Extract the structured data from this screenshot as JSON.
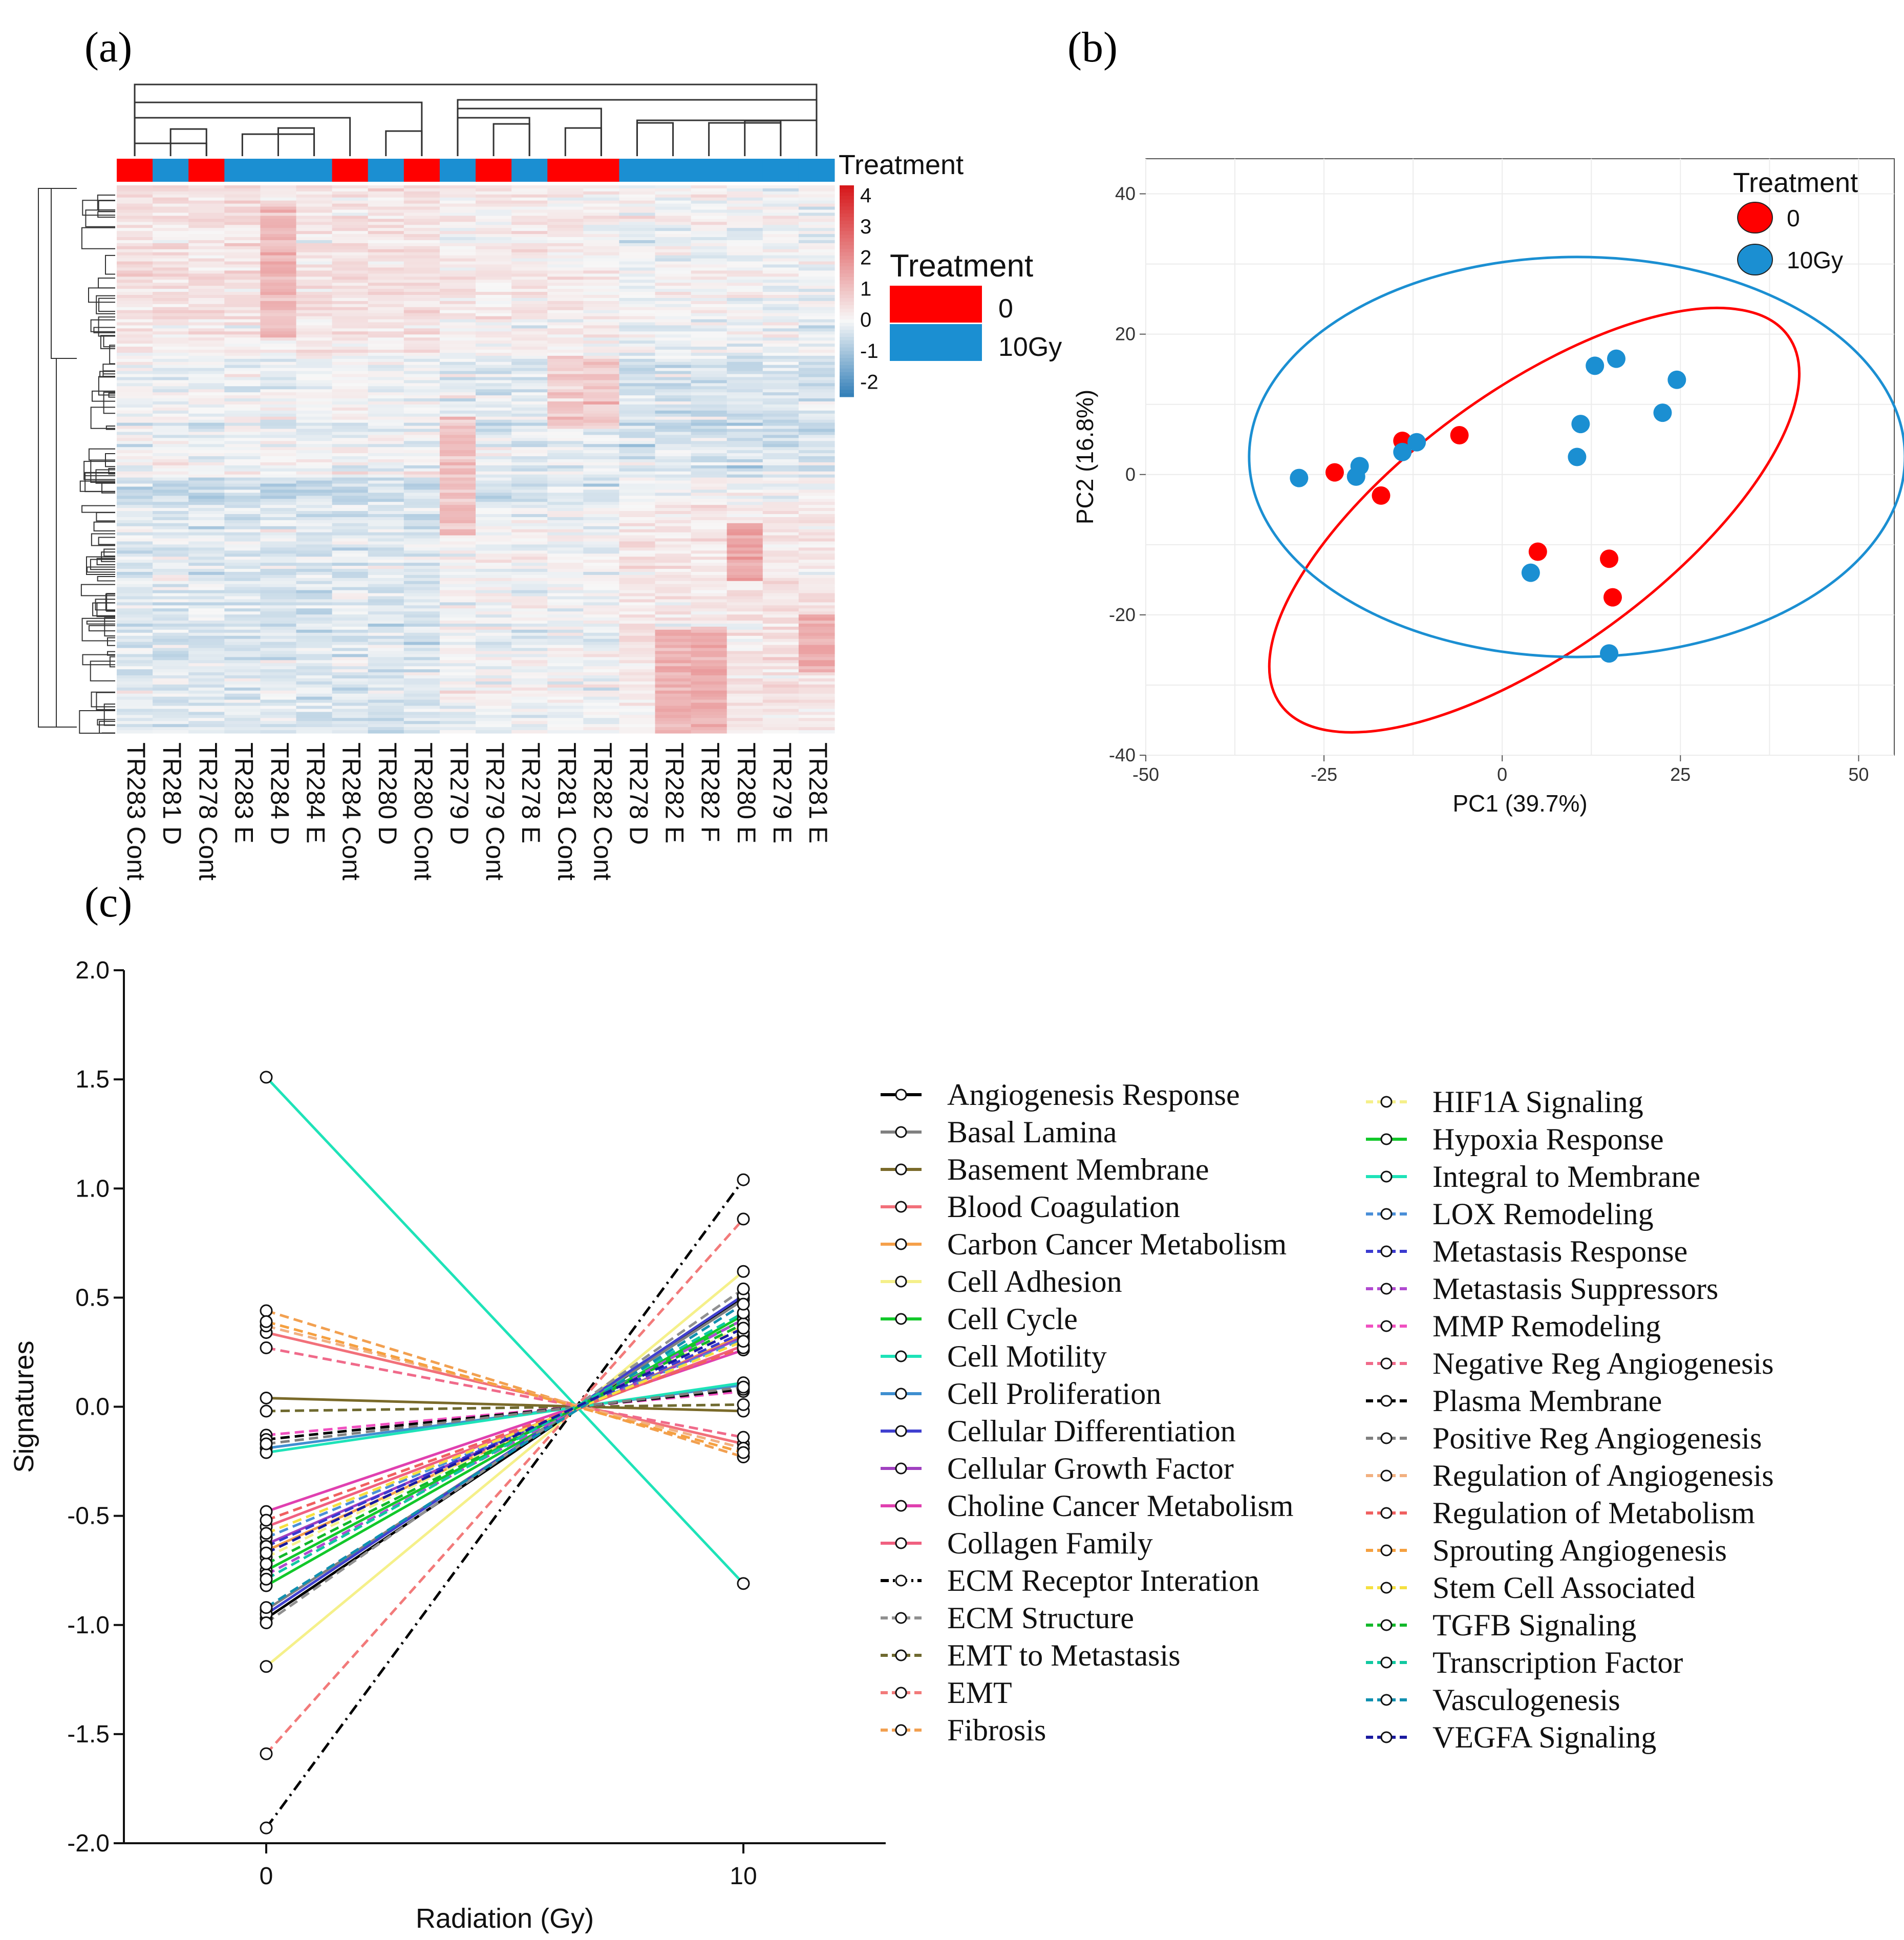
{
  "panel_labels": {
    "a": "(a)",
    "b": "(b)",
    "c": "(c)"
  },
  "chart_data": [
    {
      "id": "a",
      "type": "heatmap",
      "title": "",
      "columns": [
        "TR283 Cont",
        "TR281 D",
        "TR278 Cont",
        "TR283 E",
        "TR284 D",
        "TR284 E",
        "TR284 Cont",
        "TR280 D",
        "TR280 Cont",
        "TR279 D",
        "TR279 Cont",
        "TR278 E",
        "TR281 Cont",
        "TR282 Cont",
        "TR278 D",
        "TR282 E",
        "TR282 F",
        "TR280 E",
        "TR279 E",
        "TR281 E"
      ],
      "treatment": [
        "0",
        "10Gy",
        "0",
        "10Gy",
        "10Gy",
        "10Gy",
        "0",
        "10Gy",
        "0",
        "10Gy",
        "0",
        "10Gy",
        "0",
        "0",
        "10Gy",
        "10Gy",
        "10Gy",
        "10Gy",
        "10Gy",
        "10Gy"
      ],
      "annotation_label": "Treatment",
      "legend_title": "Treatment",
      "legend_entries": [
        {
          "label": "0",
          "color": "#ff0000"
        },
        {
          "label": "10Gy",
          "color": "#1b8fd2"
        }
      ],
      "colorbar_ticks": [
        "4",
        "3",
        "2",
        "1",
        "0",
        "-1",
        "-2"
      ],
      "color_range": [
        -2.5,
        4.3
      ],
      "colors": {
        "low": "#2c7bb6",
        "mid": "#f7f7f7",
        "high": "#d7191c"
      },
      "column_dendrogram": true,
      "row_dendrogram": true
    },
    {
      "id": "b",
      "type": "scatter",
      "title": "",
      "xlabel": "PC1 (39.7%)",
      "ylabel": "PC2 (16.8%)",
      "xlim": [
        -50,
        55
      ],
      "ylim": [
        -40,
        45
      ],
      "xticks": [
        "-50",
        "-25",
        "0",
        "25",
        "50"
      ],
      "yticks": [
        "40",
        "20",
        "0",
        "-20",
        "-40"
      ],
      "legend_title": "Treatment",
      "series": [
        {
          "name": "0",
          "color": "#ff0000",
          "points": [
            [
              -23.5,
              0.3
            ],
            [
              -14,
              4.8
            ],
            [
              -6,
              5.6
            ],
            [
              -17,
              -3
            ],
            [
              5,
              -11
            ],
            [
              15,
              -12
            ],
            [
              15.5,
              -17.5
            ]
          ],
          "ellipse": {
            "cx": 4.5,
            "cy": -6.5,
            "rx": 44,
            "ry": 18.5,
            "angle_deg": -36
          }
        },
        {
          "name": "10Gy",
          "color": "#1b8fd2",
          "points": [
            [
              -28.5,
              -0.5
            ],
            [
              -20,
              1.2
            ],
            [
              -20.5,
              -0.3
            ],
            [
              -14,
              3.2
            ],
            [
              -12,
              4.6
            ],
            [
              4,
              -14
            ],
            [
              11,
              7.2
            ],
            [
              10.5,
              2.5
            ],
            [
              13,
              15.5
            ],
            [
              16,
              16.5
            ],
            [
              22.5,
              8.8
            ],
            [
              24.5,
              13.5
            ],
            [
              15,
              -25.5
            ]
          ],
          "ellipse": {
            "cx": 10.5,
            "cy": 2.5,
            "rx": 46,
            "ry": 28.5,
            "angle_deg": 0
          }
        }
      ]
    },
    {
      "id": "c",
      "type": "line",
      "title": "",
      "xlabel": "Radiation (Gy)",
      "ylabel": "Signatures",
      "x": [
        0,
        10
      ],
      "xticks": [
        "0",
        "10"
      ],
      "ylim": [
        -2.0,
        2.0
      ],
      "yticks": [
        "2.0",
        "1.5",
        "1.0",
        "0.5",
        "0.0",
        "-0.5",
        "-1.0",
        "-1.5",
        "-2.0"
      ],
      "series": [
        {
          "name": "Angiogenesis Response",
          "values": [
            -0.97,
            0.5
          ],
          "color": "#000000",
          "dash": "solid"
        },
        {
          "name": "Basal Lamina",
          "values": [
            -0.93,
            0.49
          ],
          "color": "#808080",
          "dash": "solid"
        },
        {
          "name": "Basement Membrane",
          "values": [
            0.04,
            -0.02
          ],
          "color": "#7a6a2a",
          "dash": "solid"
        },
        {
          "name": "Blood Coagulation",
          "values": [
            0.34,
            -0.17
          ],
          "color": "#f2707a",
          "dash": "solid"
        },
        {
          "name": "Carbon Cancer Metabolism",
          "values": [
            -0.66,
            0.33
          ],
          "color": "#f5a04a",
          "dash": "solid"
        },
        {
          "name": "Cell Adhesion",
          "values": [
            -1.19,
            0.62
          ],
          "color": "#f5f08a",
          "dash": "solid"
        },
        {
          "name": "Cell Cycle",
          "values": [
            -0.82,
            0.42
          ],
          "color": "#12c82a",
          "dash": "solid"
        },
        {
          "name": "Cell Motility",
          "values": [
            1.51,
            -0.81
          ],
          "color": "#1ee3b8",
          "dash": "solid"
        },
        {
          "name": "Cell Proliferation",
          "values": [
            -0.19,
            0.1
          ],
          "color": "#3f8fd0",
          "dash": "solid"
        },
        {
          "name": "Cellular Differentiation",
          "values": [
            -0.95,
            0.51
          ],
          "color": "#4040d0",
          "dash": "solid"
        },
        {
          "name": "Cellular Growth Factor",
          "values": [
            -0.63,
            0.32
          ],
          "color": "#a040c0",
          "dash": "solid"
        },
        {
          "name": "Choline Cancer Metabolism",
          "values": [
            -0.48,
            0.26
          ],
          "color": "#e040b0",
          "dash": "solid"
        },
        {
          "name": "Collagen Family",
          "values": [
            -0.55,
            0.28
          ],
          "color": "#f06080",
          "dash": "solid"
        },
        {
          "name": "ECM Receptor Interation",
          "values": [
            -1.93,
            1.04
          ],
          "color": "#000000",
          "dash": "dashdot"
        },
        {
          "name": "ECM Structure",
          "values": [
            -0.99,
            0.54
          ],
          "color": "#909090",
          "dash": "dash"
        },
        {
          "name": "EMT to Metastasis",
          "values": [
            -0.02,
            0.01
          ],
          "color": "#6f6a30",
          "dash": "dash"
        },
        {
          "name": "EMT",
          "values": [
            -1.59,
            0.86
          ],
          "color": "#f27a7a",
          "dash": "dash"
        },
        {
          "name": "Fibrosis",
          "values": [
            0.44,
            -0.23
          ],
          "color": "#f2a050",
          "dash": "dash"
        },
        {
          "name": "HIF1A Signaling",
          "values": [
            -0.69,
            0.37
          ],
          "color": "#f5f08a",
          "dash": "dash"
        },
        {
          "name": "Hypoxia Response",
          "values": [
            -0.75,
            0.4
          ],
          "color": "#12c82a",
          "dash": "solid"
        },
        {
          "name": "Integral to Membrane",
          "values": [
            -0.21,
            0.11
          ],
          "color": "#1ee3b8",
          "dash": "solid"
        },
        {
          "name": "LOX Remodeling",
          "values": [
            -0.6,
            0.31
          ],
          "color": "#4a8fd8",
          "dash": "dash"
        },
        {
          "name": "Metastasis Response",
          "values": [
            -0.64,
            0.34
          ],
          "color": "#3a3ad0",
          "dash": "dash"
        },
        {
          "name": "Metastasis Suppressors",
          "values": [
            -0.77,
            0.4
          ],
          "color": "#b04ad0",
          "dash": "dash"
        },
        {
          "name": "MMP Remodeling",
          "values": [
            -0.13,
            0.07
          ],
          "color": "#f050c0",
          "dash": "dash"
        },
        {
          "name": "Negative Reg Angiogenesis",
          "values": [
            0.27,
            -0.14
          ],
          "color": "#f06a8a",
          "dash": "dash"
        },
        {
          "name": "Plasma Membrane",
          "values": [
            -0.15,
            0.08
          ],
          "color": "#000000",
          "dash": "dash"
        },
        {
          "name": "Positive Reg Angiogenesis",
          "values": [
            -0.17,
            0.09
          ],
          "color": "#808080",
          "dash": "dash"
        },
        {
          "name": "Regulation of Angiogenesis",
          "values": [
            0.37,
            -0.19
          ],
          "color": "#f2b080",
          "dash": "dash"
        },
        {
          "name": "Regulation of Metabolism",
          "values": [
            -0.52,
            0.27
          ],
          "color": "#f06060",
          "dash": "dash"
        },
        {
          "name": "Sprouting Angiogenesis",
          "values": [
            0.39,
            -0.21
          ],
          "color": "#f5a040",
          "dash": "dash"
        },
        {
          "name": "Stem Cell Associated",
          "values": [
            -0.58,
            0.3
          ],
          "color": "#f5e040",
          "dash": "dash"
        },
        {
          "name": "TGFB Signaling",
          "values": [
            -0.72,
            0.38
          ],
          "color": "#12b82a",
          "dash": "dash"
        },
        {
          "name": "Transcription Factor",
          "values": [
            -0.79,
            0.43
          ],
          "color": "#10c8a0",
          "dash": "dash"
        },
        {
          "name": "Vasculogenesis",
          "values": [
            -0.92,
            0.47
          ],
          "color": "#1090b0",
          "dash": "dash"
        },
        {
          "name": "VEGFA Signaling",
          "values": [
            -0.67,
            0.36
          ],
          "color": "#1a1aa0",
          "dash": "dash"
        }
      ]
    }
  ]
}
